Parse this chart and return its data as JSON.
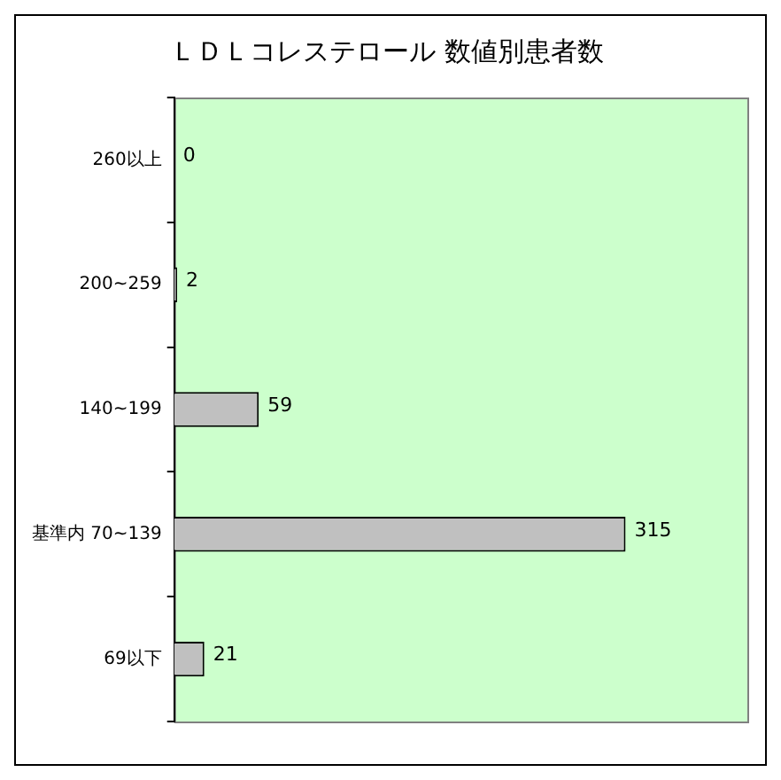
{
  "chart_data": {
    "type": "bar",
    "orientation": "horizontal",
    "title": "ＬＤＬコレステロール 数値別患者数",
    "categories": [
      "260以上",
      "200~259",
      "140~199",
      "基準内 70~139",
      "69以下"
    ],
    "values": [
      0,
      2,
      59,
      315,
      21
    ],
    "color": "#c0c0c0",
    "data_labels": true,
    "legend": false
  }
}
